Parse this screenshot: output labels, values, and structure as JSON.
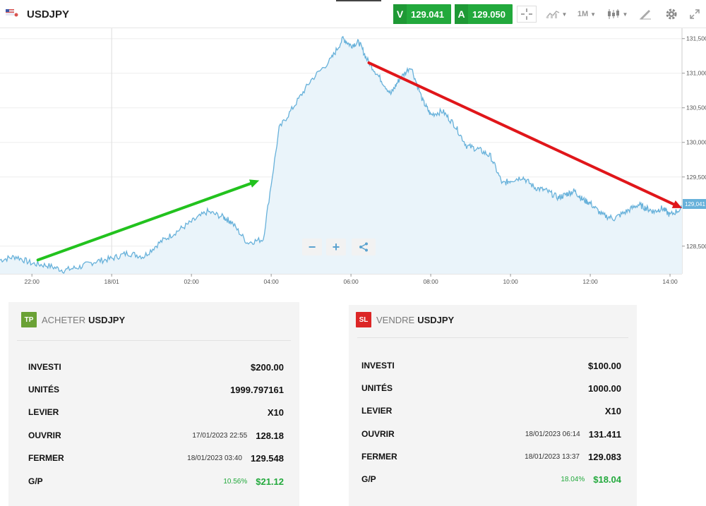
{
  "header": {
    "symbol": "USDJPY",
    "sell_letter": "V",
    "sell_price": "129.041",
    "buy_letter": "A",
    "buy_price": "129.050",
    "timeframe": "1M",
    "icons": [
      "flag-icon",
      "crosshair-icon",
      "chart-type-icon",
      "candlestick-icon",
      "drawing-icon",
      "gear-icon",
      "expand-icon"
    ]
  },
  "chart_data": {
    "type": "area",
    "x_ticks": [
      "22:00",
      "18/01",
      "02:00",
      "04:00",
      "06:00",
      "08:00",
      "10:00",
      "12:00",
      "14:00"
    ],
    "y_ticks": [
      "131,500",
      "131,000",
      "130,500",
      "130,000",
      "129,500",
      "128,500"
    ],
    "current_price_label": "129,041",
    "ylim": [
      128.1,
      131.65
    ],
    "x_hour_range": [
      21.2,
      38.3
    ],
    "series": [
      {
        "x": [
          21.2,
          21.6,
          22.0,
          22.4,
          22.8,
          23.2,
          23.6,
          24.0,
          24.4,
          24.8,
          25.2,
          25.6,
          26.0,
          26.4,
          26.8,
          27.0,
          27.4,
          27.8,
          28.2,
          28.6,
          29.0,
          29.5,
          29.8,
          30.0,
          30.2,
          30.4,
          30.7,
          31.0,
          31.2,
          31.5,
          31.8,
          32.0,
          32.3,
          32.6,
          32.9,
          33.2,
          33.5,
          33.8,
          34.0,
          34.3,
          34.6,
          34.9,
          35.2,
          35.4,
          35.6,
          35.8,
          36.0,
          36.3,
          36.6,
          36.9,
          37.2,
          37.4,
          37.6,
          37.8,
          38.0,
          38.3
        ],
        "y": [
          128.3,
          128.35,
          128.25,
          128.22,
          128.15,
          128.2,
          128.28,
          128.32,
          128.4,
          128.35,
          128.55,
          128.7,
          128.85,
          129.0,
          128.92,
          128.85,
          128.55,
          128.6,
          130.2,
          130.55,
          130.9,
          131.2,
          131.5,
          131.4,
          131.45,
          131.2,
          130.95,
          130.7,
          130.9,
          131.1,
          130.6,
          130.4,
          130.45,
          130.25,
          129.95,
          129.9,
          129.8,
          129.4,
          129.45,
          129.5,
          129.35,
          129.3,
          129.2,
          129.25,
          129.3,
          129.18,
          129.12,
          128.95,
          128.9,
          129.0,
          129.1,
          129.05,
          129.0,
          129.05,
          128.95,
          129.05
        ]
      }
    ],
    "arrows": [
      {
        "color": "#22c21e",
        "from": [
          22.15,
          128.3
        ],
        "to": [
          27.7,
          129.45
        ]
      },
      {
        "color": "#e0161a",
        "from": [
          30.45,
          131.15
        ],
        "to": [
          38.3,
          129.05
        ]
      }
    ]
  },
  "zoom": {
    "minus": "−",
    "plus": "+"
  },
  "buy_card": {
    "badge": "TP",
    "verb": "ACHETER",
    "symbol": "USDJPY",
    "rows": {
      "investi": {
        "label": "INVESTI",
        "value": "$200.00"
      },
      "unites": {
        "label": "UNITÉS",
        "value": "1999.797161"
      },
      "levier": {
        "label": "LEVIER",
        "value": "X10"
      },
      "ouvrir": {
        "label": "OUVRIR",
        "date": "17/01/2023 22:55",
        "value": "128.18"
      },
      "fermer": {
        "label": "FERMER",
        "date": "18/01/2023 03:40",
        "value": "129.548"
      },
      "gp": {
        "label": "G/P",
        "pct": "10.56%",
        "value": "$21.12"
      }
    }
  },
  "sell_card": {
    "badge": "SL",
    "verb": "VENDRE",
    "symbol": "USDJPY",
    "rows": {
      "investi": {
        "label": "INVESTI",
        "value": "$100.00"
      },
      "unites": {
        "label": "UNITÉS",
        "value": "1000.00"
      },
      "levier": {
        "label": "LEVIER",
        "value": "X10"
      },
      "ouvrir": {
        "label": "OUVRIR",
        "date": "18/01/2023 06:14",
        "value": "131.411"
      },
      "fermer": {
        "label": "FERMER",
        "date": "18/01/2023 13:37",
        "value": "129.083"
      },
      "gp": {
        "label": "G/P",
        "pct": "18.04%",
        "value": "$18.04"
      }
    }
  }
}
